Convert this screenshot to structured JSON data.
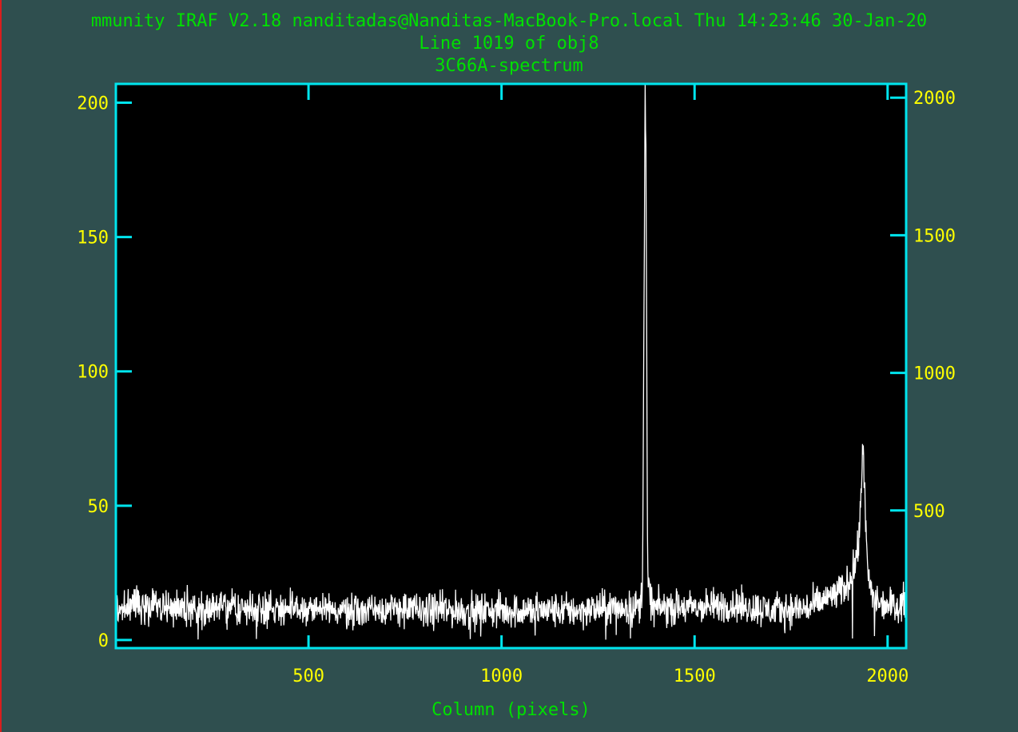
{
  "header": {
    "system_line": "mmunity IRAF V2.18 nanditadas@Nanditas-MacBook-Pro.local Thu 14:23:46 30-Jan-20",
    "line_info": "Line 1019 of obj8",
    "title": "3C66A-spectrum"
  },
  "colors": {
    "background": "#2f4f4f",
    "plot_background": "#000000",
    "frame": "#00e5ee",
    "tick_labels": "#ffff00",
    "text": "#00e000",
    "spectrum": "#ffffff",
    "left_edge": "#d81e1e"
  },
  "chart_data": {
    "type": "line",
    "title": "3C66A-spectrum",
    "subtitle": "Line 1019 of obj8",
    "xlabel": "Column (pixels)",
    "ylabel": "",
    "xlim": [
      1,
      2048
    ],
    "ylim": [
      -3,
      207
    ],
    "x_ticks": [
      500,
      1000,
      1500,
      2000
    ],
    "y_ticks": [
      0,
      50,
      100,
      150,
      200
    ],
    "y2_ticks": [
      500,
      1000,
      1500,
      2000
    ],
    "y2lim": [
      0,
      2050
    ],
    "grid": false,
    "series": [
      {
        "baseline_level": 12,
        "noise_amplitude": 4,
        "x": [
          1,
          100,
          200,
          300,
          400,
          500,
          600,
          700,
          800,
          900,
          1000,
          1100,
          1200,
          1300,
          1340,
          1360,
          1365,
          1370,
          1372,
          1374,
          1376,
          1378,
          1380,
          1385,
          1395,
          1420,
          1500,
          1600,
          1700,
          1800,
          1850,
          1880,
          1900,
          1915,
          1925,
          1932,
          1936,
          1940,
          1945,
          1950,
          1960,
          1980,
          2000,
          2048
        ],
        "values": [
          12,
          13,
          12,
          12,
          12,
          11,
          11,
          12,
          11,
          11,
          11,
          11,
          11,
          12,
          12,
          13,
          20,
          150,
          208,
          180,
          110,
          35,
          22,
          15,
          12,
          12,
          12,
          13,
          11,
          12,
          16,
          18,
          22,
          28,
          35,
          55,
          75,
          58,
          35,
          22,
          16,
          14,
          13,
          14
        ]
      }
    ]
  }
}
